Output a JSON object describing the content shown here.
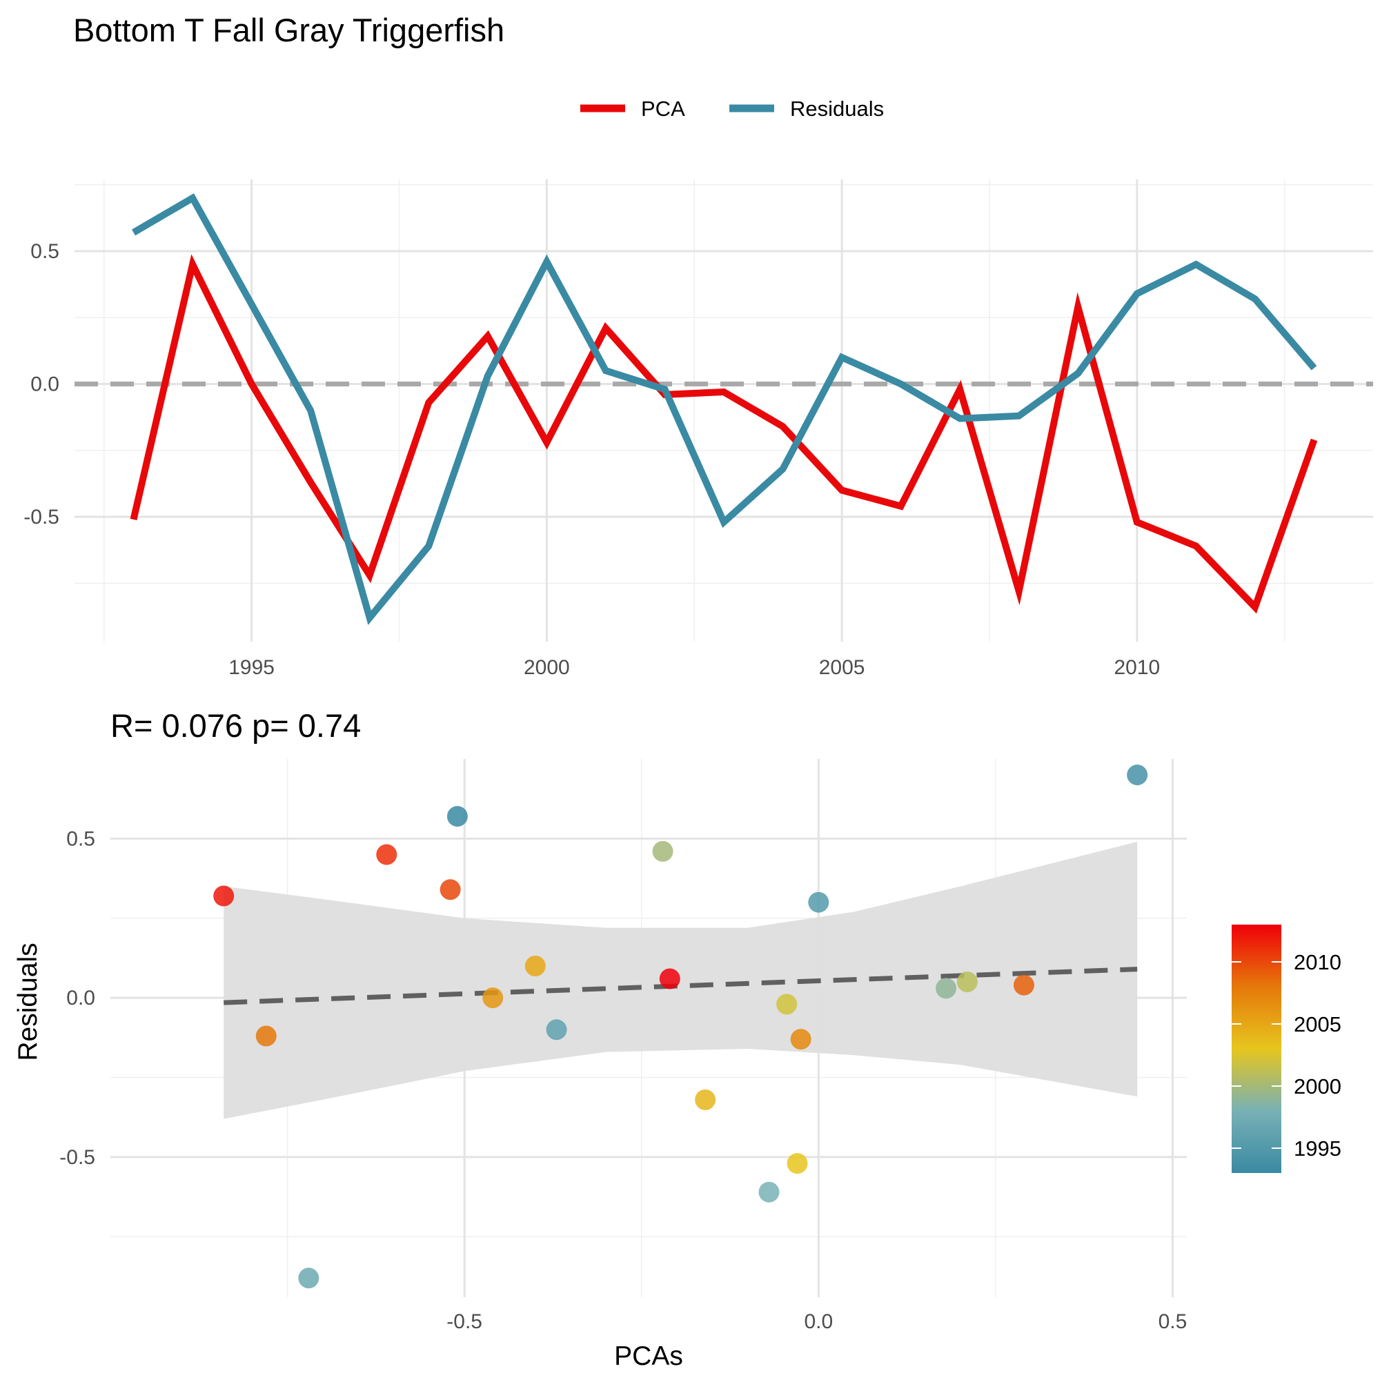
{
  "title": "Bottom T Fall Gray Triggerfish",
  "colors": {
    "pca": "#e8080a",
    "residuals": "#3a8aa3",
    "zero_line": "#a9a9a9",
    "fit_line": "#606060",
    "ci_band": "#dedede",
    "gradient": [
      "#3a8aa3",
      "#78b1b5",
      "#e6c61e",
      "#e5780a",
      "#f0000a"
    ]
  },
  "chart_data": [
    {
      "type": "line",
      "title": "Bottom T Fall Gray Triggerfish",
      "xlabel": "",
      "ylabel": "",
      "legend": {
        "position": "top",
        "entries": [
          "PCA",
          "Residuals"
        ]
      },
      "grid": true,
      "hline": 0,
      "xlim": [
        1992,
        2014
      ],
      "ylim": [
        -0.97,
        0.77
      ],
      "x_ticks": [
        1995,
        2000,
        2005,
        2010
      ],
      "y_ticks": [
        -0.5,
        0.0,
        0.5
      ],
      "x_tick_labels": [
        "1995",
        "2000",
        "2005",
        "2010"
      ],
      "y_tick_labels": [
        "-0.5",
        "0.0",
        "0.5"
      ],
      "x": [
        1993,
        1994,
        1995,
        1996,
        1997,
        1998,
        1999,
        2000,
        2001,
        2002,
        2003,
        2004,
        2005,
        2006,
        2007,
        2008,
        2009,
        2010,
        2011,
        2012,
        2013
      ],
      "series": [
        {
          "name": "PCA",
          "values": [
            -0.51,
            0.45,
            0.0,
            -0.37,
            -0.72,
            -0.07,
            0.18,
            -0.22,
            0.21,
            -0.04,
            -0.03,
            -0.16,
            -0.4,
            -0.46,
            -0.02,
            -0.78,
            0.29,
            -0.52,
            -0.61,
            -0.84,
            -0.21
          ]
        },
        {
          "name": "Residuals",
          "values": [
            0.57,
            0.7,
            0.3,
            -0.1,
            -0.88,
            -0.61,
            0.03,
            0.46,
            0.05,
            -0.02,
            -0.52,
            -0.32,
            0.1,
            0.0,
            -0.13,
            -0.12,
            0.04,
            0.34,
            0.45,
            0.32,
            0.06
          ]
        }
      ]
    },
    {
      "type": "scatter",
      "title": "R= 0.076  p= 0.74",
      "xlabel": "PCAs",
      "ylabel": "Residuals",
      "grid": true,
      "xlim": [
        -1.0,
        0.52
      ],
      "ylim": [
        -0.94,
        0.75
      ],
      "x_ticks": [
        -0.5,
        0.0,
        0.5
      ],
      "y_ticks": [
        -0.5,
        0.0,
        0.5
      ],
      "x_tick_labels": [
        "-0.5",
        "0.0",
        "0.5"
      ],
      "y_tick_labels": [
        "-0.5",
        "0.0",
        "0.5"
      ],
      "color_scale": {
        "variable": "year",
        "range": [
          1993,
          2013
        ],
        "ticks": [
          1995,
          2000,
          2005,
          2010
        ],
        "tick_labels": [
          "1995",
          "2000",
          "2005",
          "2010"
        ]
      },
      "points": [
        {
          "year": 1993,
          "x": -0.51,
          "y": 0.57
        },
        {
          "year": 1994,
          "x": 0.45,
          "y": 0.7
        },
        {
          "year": 1995,
          "x": 0.0,
          "y": 0.3
        },
        {
          "year": 1996,
          "x": -0.37,
          "y": -0.1
        },
        {
          "year": 1997,
          "x": -0.72,
          "y": -0.88
        },
        {
          "year": 1998,
          "x": -0.07,
          "y": -0.61
        },
        {
          "year": 1999,
          "x": 0.18,
          "y": 0.03
        },
        {
          "year": 2000,
          "x": -0.22,
          "y": 0.46
        },
        {
          "year": 2001,
          "x": 0.21,
          "y": 0.05
        },
        {
          "year": 2002,
          "x": -0.045,
          "y": -0.02
        },
        {
          "year": 2003,
          "x": -0.03,
          "y": -0.52
        },
        {
          "year": 2004,
          "x": -0.16,
          "y": -0.32
        },
        {
          "year": 2005,
          "x": -0.4,
          "y": 0.1
        },
        {
          "year": 2006,
          "x": -0.46,
          "y": 0.0
        },
        {
          "year": 2007,
          "x": -0.025,
          "y": -0.13
        },
        {
          "year": 2008,
          "x": -0.78,
          "y": -0.12
        },
        {
          "year": 2009,
          "x": 0.29,
          "y": 0.04
        },
        {
          "year": 2010,
          "x": -0.52,
          "y": 0.34
        },
        {
          "year": 2011,
          "x": -0.61,
          "y": 0.45
        },
        {
          "year": 2012,
          "x": -0.84,
          "y": 0.32
        },
        {
          "year": 2013,
          "x": -0.21,
          "y": 0.06
        }
      ],
      "fit_line": {
        "x": [
          -0.84,
          0.45
        ],
        "y": [
          -0.015,
          0.09
        ],
        "style": "dashed"
      },
      "confidence_band": {
        "x": [
          -0.84,
          -0.7,
          -0.5,
          -0.3,
          -0.1,
          0.05,
          0.2,
          0.45
        ],
        "upper": [
          0.35,
          0.31,
          0.25,
          0.22,
          0.22,
          0.27,
          0.35,
          0.49
        ],
        "lower": [
          -0.38,
          -0.32,
          -0.23,
          -0.17,
          -0.16,
          -0.18,
          -0.21,
          -0.31
        ]
      }
    }
  ]
}
